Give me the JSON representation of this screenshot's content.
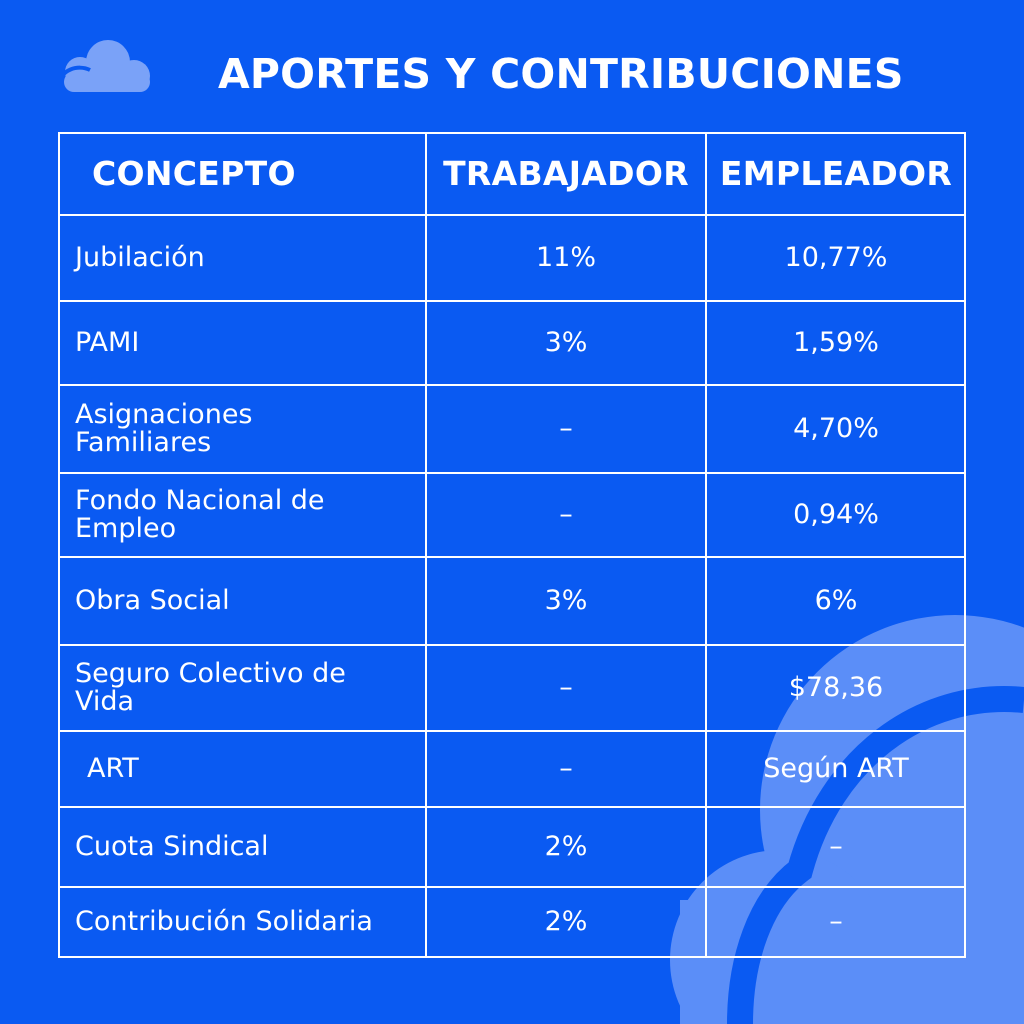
{
  "title": "APORTES Y CONTRIBUCIONES",
  "icon": "cloud-icon",
  "colors": {
    "background": "#0a5af2",
    "text": "#ffffff",
    "cloud": "#6f9bf7"
  },
  "table": {
    "headers": {
      "concepto": "CONCEPTO",
      "trabajador": "TRABAJADOR",
      "empleador": "EMPLEADOR"
    },
    "rows": [
      {
        "concepto": "Jubilación",
        "trabajador": "11%",
        "empleador": "10,77%"
      },
      {
        "concepto": "PAMI",
        "trabajador": "3%",
        "empleador": "1,59%"
      },
      {
        "concepto": "Asignaciones\nFamiliares",
        "trabajador": "–",
        "empleador": "4,70%"
      },
      {
        "concepto": "Fondo Nacional de\nEmpleo",
        "trabajador": "–",
        "empleador": "0,94%"
      },
      {
        "concepto": "Obra Social",
        "trabajador": "3%",
        "empleador": "6%"
      },
      {
        "concepto": "Seguro Colectivo de\nVida",
        "trabajador": "–",
        "empleador": "$78,36"
      },
      {
        "concepto": "ART",
        "trabajador": "–",
        "empleador": "Según ART"
      },
      {
        "concepto": "Cuota Sindical",
        "trabajador": "2%",
        "empleador": "–"
      },
      {
        "concepto": "Contribución Solidaria",
        "trabajador": "2%",
        "empleador": "–"
      }
    ]
  }
}
